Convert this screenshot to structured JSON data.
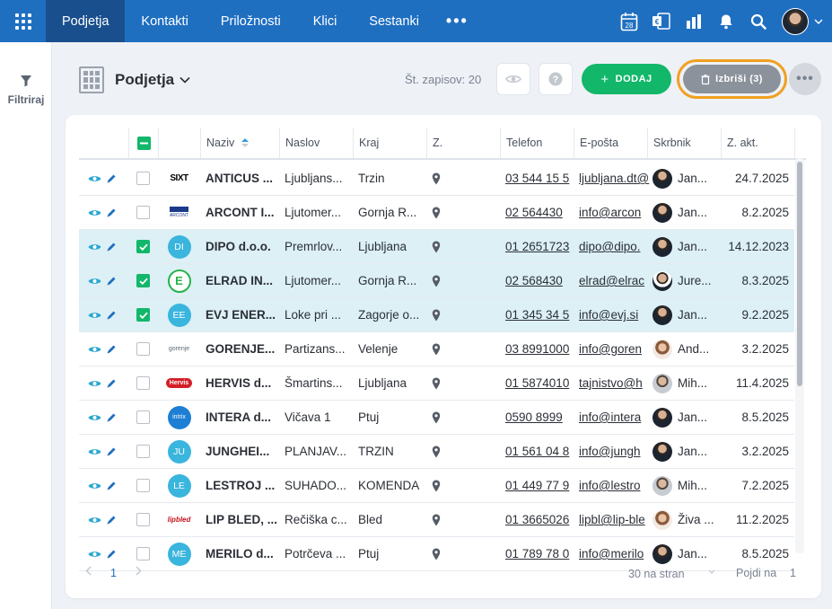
{
  "nav": {
    "items": [
      "Podjetja",
      "Kontakti",
      "Priložnosti",
      "Klici",
      "Sestanki"
    ],
    "active": "Podjetja",
    "more": "•••",
    "calendar_day": "28"
  },
  "colors": {
    "nav_bg": "#1f6fc1",
    "nav_active": "#1a4f8e",
    "accent_green": "#12b76a",
    "selected_row": "#dcf0f6",
    "delete_highlight": "#f0a020"
  },
  "sidebar": {
    "filter_label": "Filtriraj"
  },
  "header": {
    "title": "Podjetja",
    "record_count": "Št. zapisov: 20",
    "add_label": "DODAJ",
    "delete_label": "Izbriši (3)"
  },
  "columns": [
    "Naziv",
    "Naslov",
    "Kraj",
    "Z.",
    "Telefon",
    "E-pošta",
    "Skrbnik",
    "Z. akt."
  ],
  "rows": [
    {
      "logo": "SIXT",
      "naziv": "ANTICUS ...",
      "naslov": "Ljubljans...",
      "kraj": "Trzin",
      "telefon": "03 544 15 5",
      "email": "ljubljana.dt@",
      "skrbnik": "Jan...",
      "avatar": "m",
      "zakt": "24.7.2025",
      "selected": false
    },
    {
      "logo": "ARCONT",
      "naziv": "ARCONT I...",
      "naslov": "Ljutomer...",
      "kraj": "Gornja R...",
      "telefon": "02 564430",
      "email": "info@arcon",
      "skrbnik": "Jan...",
      "avatar": "m",
      "zakt": "8.2.2025",
      "selected": false
    },
    {
      "logo": "DI",
      "naziv": "DIPO d.o.o.",
      "naslov": "Premrlov...",
      "kraj": "Ljubljana",
      "telefon": "01 2651723",
      "email": "dipo@dipo.",
      "skrbnik": "Jan...",
      "avatar": "m",
      "zakt": "14.12.2023",
      "selected": true
    },
    {
      "logo": "E",
      "naziv": "ELRAD IN...",
      "naslov": "Ljutomer...",
      "kraj": "Gornja R...",
      "telefon": "02 568430",
      "email": "elrad@elrac",
      "skrbnik": "Jure...",
      "avatar": "j",
      "zakt": "8.3.2025",
      "selected": true
    },
    {
      "logo": "EE",
      "naziv": "EVJ ENER...",
      "naslov": "Loke pri ...",
      "kraj": "Zagorje o...",
      "telefon": "01 345 34 5",
      "email": "info@evj.si",
      "skrbnik": "Jan...",
      "avatar": "m",
      "zakt": "9.2.2025",
      "selected": true
    },
    {
      "logo": "gorenje",
      "naziv": "GORENJE...",
      "naslov": "Partizans...",
      "kraj": "Velenje",
      "telefon": "03 8991000",
      "email": "info@goren",
      "skrbnik": "And...",
      "avatar": "f",
      "zakt": "3.2.2025",
      "selected": false
    },
    {
      "logo": "Hervis",
      "naziv": "HERVIS d...",
      "naslov": "Šmartins...",
      "kraj": "Ljubljana",
      "telefon": "01 5874010",
      "email": "tajnistvo@h",
      "skrbnik": "Mih...",
      "avatar": "g",
      "zakt": "11.4.2025",
      "selected": false
    },
    {
      "logo": "intrix",
      "naziv": "INTERA d...",
      "naslov": "Vičava 1",
      "kraj": "Ptuj",
      "telefon": "0590 8999",
      "email": "info@intera",
      "skrbnik": "Jan...",
      "avatar": "m",
      "zakt": "8.5.2025",
      "selected": false
    },
    {
      "logo": "JU",
      "naziv": "JUNGHEI...",
      "naslov": "PLANJAV...",
      "kraj": "TRZIN",
      "telefon": "01 561 04 8",
      "email": "info@jungh",
      "skrbnik": "Jan...",
      "avatar": "m",
      "zakt": "3.2.2025",
      "selected": false
    },
    {
      "logo": "LE",
      "naziv": "LESTROJ ...",
      "naslov": "SUHADO...",
      "kraj": "KOMENDA",
      "telefon": "01 449 77 9",
      "email": "info@lestro",
      "skrbnik": "Mih...",
      "avatar": "g",
      "zakt": "7.2.2025",
      "selected": false
    },
    {
      "logo": "lipbled",
      "naziv": "LIP BLED, ...",
      "naslov": "Rečiška c...",
      "kraj": "Bled",
      "telefon": "01 3665026",
      "email": "lipbl@lip-ble",
      "skrbnik": "Živa ...",
      "avatar": "f",
      "zakt": "11.2.2025",
      "selected": false
    },
    {
      "logo": "ME",
      "naziv": "MERILO d...",
      "naslov": "Potrčeva ...",
      "kraj": "Ptuj",
      "telefon": "01 789 78 0",
      "email": "info@merilo",
      "skrbnik": "Jan...",
      "avatar": "m",
      "zakt": "8.5.2025",
      "selected": false
    }
  ],
  "footer": {
    "page": "1",
    "per_page": "30 na stran",
    "goto_label": "Pojdi na",
    "goto_value": "1"
  }
}
